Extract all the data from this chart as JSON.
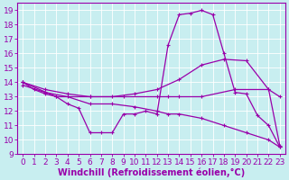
{
  "xlabel": "Windchill (Refroidissement éolien,°C)",
  "xlim": [
    -0.5,
    23.5
  ],
  "ylim": [
    9,
    19.5
  ],
  "yticks": [
    9,
    10,
    11,
    12,
    13,
    14,
    15,
    16,
    17,
    18,
    19
  ],
  "xticks": [
    0,
    1,
    2,
    3,
    4,
    5,
    6,
    7,
    8,
    9,
    10,
    11,
    12,
    13,
    14,
    15,
    16,
    17,
    18,
    19,
    20,
    21,
    22,
    23
  ],
  "bg_color": "#c8eef0",
  "line_color": "#9900aa",
  "grid_color": "#ffffff",
  "line1_x": [
    0,
    1,
    2,
    3,
    4,
    5,
    6,
    7,
    8,
    9,
    10,
    11,
    12,
    13,
    14,
    15,
    16,
    17,
    18,
    19,
    20,
    21,
    22,
    23
  ],
  "line1_y": [
    14.0,
    13.5,
    13.2,
    13.0,
    12.5,
    12.2,
    10.5,
    10.5,
    10.5,
    11.8,
    11.8,
    12.0,
    11.8,
    16.6,
    18.7,
    18.8,
    19.0,
    18.7,
    16.0,
    13.3,
    13.2,
    11.7,
    11.0,
    9.5
  ],
  "line2_x": [
    0,
    2,
    4,
    6,
    8,
    10,
    12,
    14,
    16,
    18,
    20,
    22,
    23
  ],
  "line2_y": [
    14.0,
    13.5,
    13.2,
    13.0,
    13.0,
    13.2,
    13.5,
    14.2,
    15.2,
    15.6,
    15.5,
    13.5,
    9.6
  ],
  "line3_x": [
    0,
    3,
    6,
    9,
    12,
    13,
    14,
    16,
    19,
    22,
    23
  ],
  "line3_y": [
    14.0,
    13.0,
    13.0,
    13.0,
    13.0,
    13.0,
    13.0,
    13.0,
    13.5,
    13.5,
    13.0
  ],
  "line4_x": [
    0,
    2,
    4,
    6,
    8,
    10,
    12,
    13,
    14,
    16,
    18,
    20,
    22,
    23
  ],
  "line4_y": [
    13.8,
    13.3,
    13.0,
    12.5,
    12.5,
    12.3,
    12.0,
    11.8,
    11.8,
    11.5,
    11.0,
    10.5,
    10.0,
    9.5
  ],
  "tick_fontsize": 6.5,
  "xlabel_fontsize": 7.0
}
